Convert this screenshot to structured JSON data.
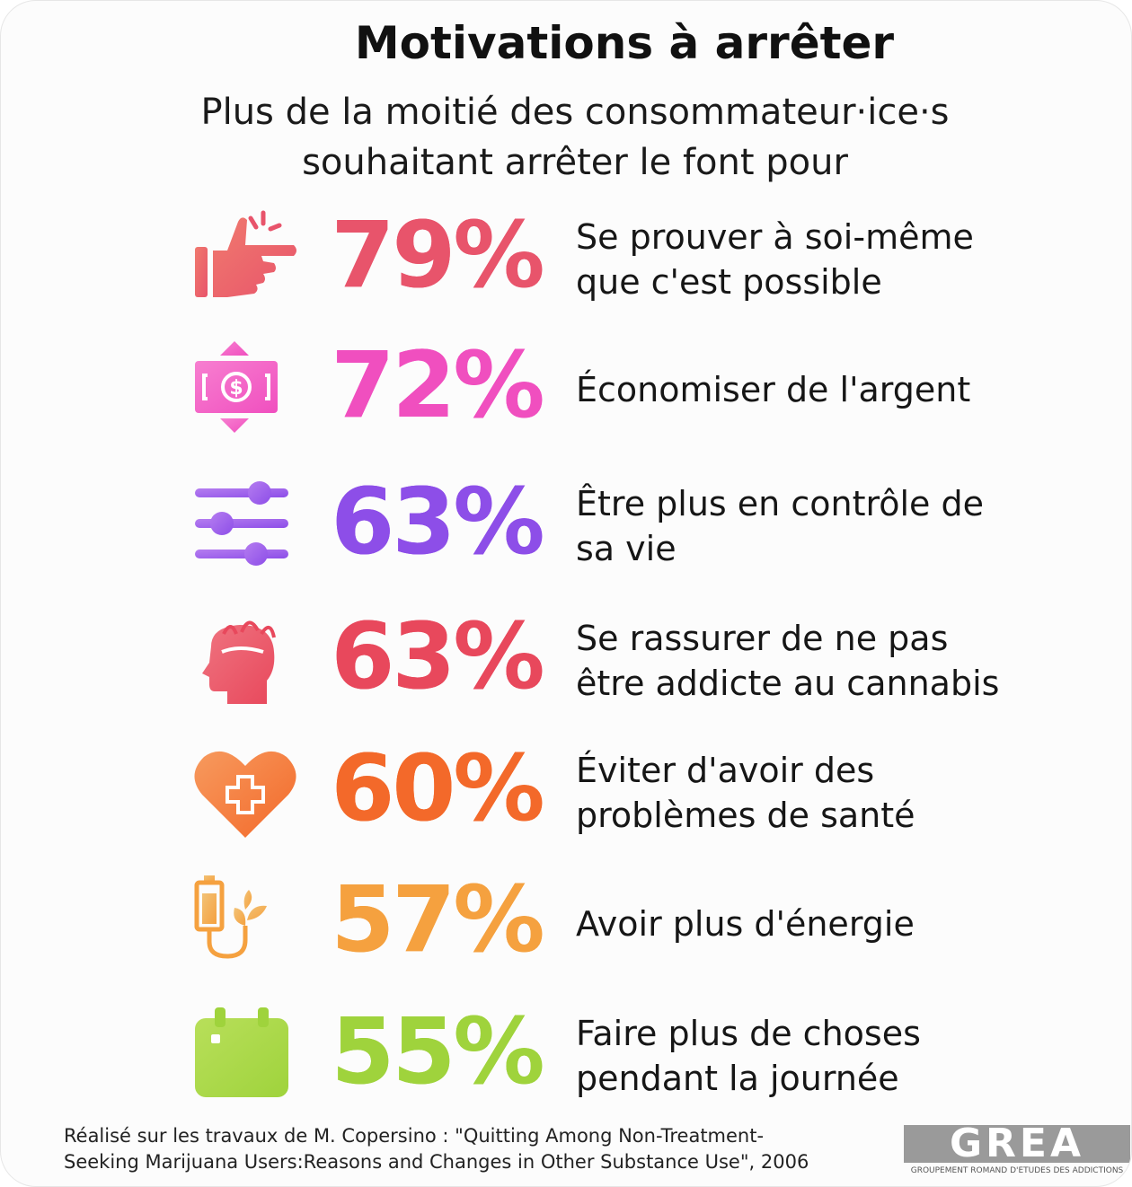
{
  "chart_data": {
    "type": "table",
    "title": "Motivations à arrêter",
    "subtitle": [
      "Plus de la moitié des consommateur·ice·s",
      "souhaitant arrêter le font pour"
    ],
    "rows": [
      {
        "value_label": "79%",
        "value": 79,
        "label": [
          "Se prouver à soi-même",
          "que c'est possible"
        ],
        "color": "#e8546b",
        "color2": "#f07a6e",
        "icon": "pointing-hand-icon"
      },
      {
        "value_label": "72%",
        "value": 72,
        "label": [
          "Économiser de l'argent"
        ],
        "color": "#f04fbf",
        "color2": "#f77fd0",
        "icon": "money-bill-icon"
      },
      {
        "value_label": "63%",
        "value": 63,
        "label": [
          "Être plus en contrôle de",
          "sa vie"
        ],
        "color": "#8d4ee8",
        "color2": "#b57df0",
        "icon": "sliders-icon"
      },
      {
        "value_label": "63%",
        "value": 63,
        "label": [
          "Se rassurer de ne pas",
          "être addicte au cannabis"
        ],
        "color": "#e8485c",
        "color2": "#ef7480",
        "icon": "head-sprout-icon"
      },
      {
        "value_label": "60%",
        "value": 60,
        "label": [
          "Éviter d'avoir des",
          "problèmes de santé"
        ],
        "color": "#f3692a",
        "color2": "#f79a5e",
        "icon": "heart-cross-icon"
      },
      {
        "value_label": "57%",
        "value": 57,
        "label": [
          "Avoir plus d'énergie"
        ],
        "color": "#f5a13f",
        "color2": "#f2c276",
        "icon": "battery-plant-icon"
      },
      {
        "value_label": "55%",
        "value": 55,
        "label": [
          "Faire plus de choses",
          "pendant la journée"
        ],
        "color": "#9fd33c",
        "color2": "#b8df5a",
        "icon": "calendar-icon"
      }
    ]
  },
  "source": [
    "Réalisé sur les travaux de M. Copersino  : \"Quitting Among Non-Treatment-",
    "Seeking Marijuana Users:Reasons and Changes in Other Substance Use\", 2006"
  ],
  "logo": {
    "text": "GREA",
    "subtitle": "GROUPEMENT ROMAND D'ETUDES DES ADDICTIONS"
  }
}
